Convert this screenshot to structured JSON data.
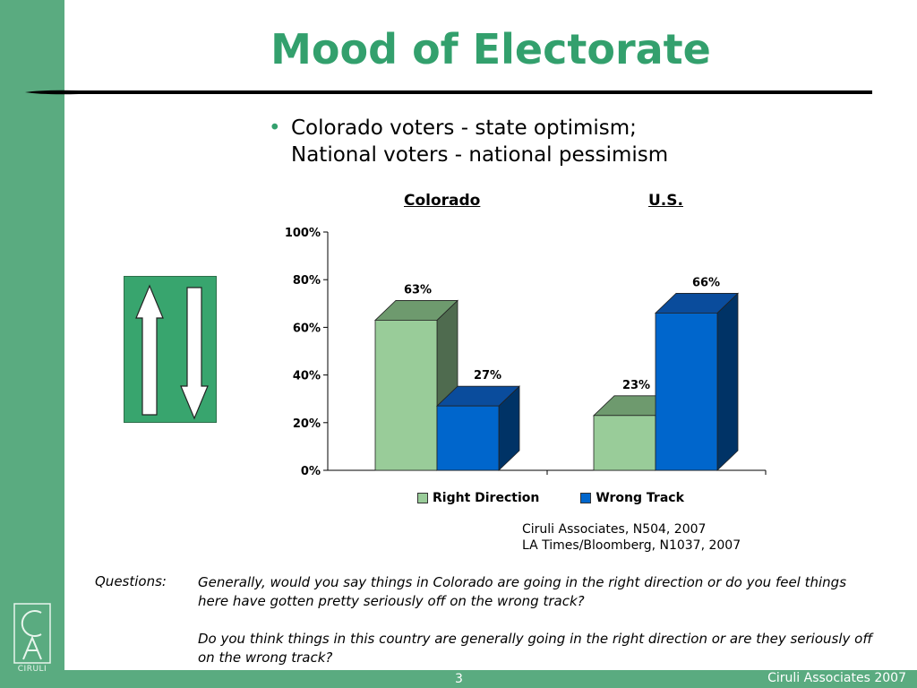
{
  "slide": {
    "title": "Mood of Electorate",
    "bullet_lines": [
      "Colorado voters - state optimism;",
      "National voters - national pessimism"
    ],
    "page_number": "3",
    "footer_credit": "Ciruli Associates 2007",
    "logo_text": "CIRULI"
  },
  "colors": {
    "accent_green": "#5aab80",
    "title_green": "#33a06d",
    "right_direction": "#99cc99",
    "wrong_track": "#0066cc"
  },
  "chart_data": {
    "type": "bar",
    "categories": [
      "Colorado",
      "U.S."
    ],
    "series": [
      {
        "name": "Right Direction",
        "values": [
          63,
          23
        ],
        "data_labels": [
          "63%",
          "23%"
        ]
      },
      {
        "name": "Wrong Track",
        "values": [
          27,
          66
        ],
        "data_labels": [
          "27%",
          "66%"
        ]
      }
    ],
    "ylim": [
      0,
      100
    ],
    "yticks": [
      0,
      20,
      40,
      60,
      80,
      100
    ],
    "ytick_labels": [
      "0%",
      "20%",
      "40%",
      "60%",
      "80%",
      "100%"
    ],
    "legend_position": "bottom",
    "grid": false,
    "style": "3d"
  },
  "sources": [
    "Ciruli Associates, N504, 2007",
    "LA Times/Bloomberg, N1037, 2007"
  ],
  "questions": {
    "label": "Questions:",
    "items": [
      "Generally, would you say things in Colorado are going in the right direction or do you feel things here have gotten pretty seriously off on the wrong track?",
      "Do you think things in this country are generally going in the right direction or are they seriously off on the wrong track?"
    ]
  }
}
